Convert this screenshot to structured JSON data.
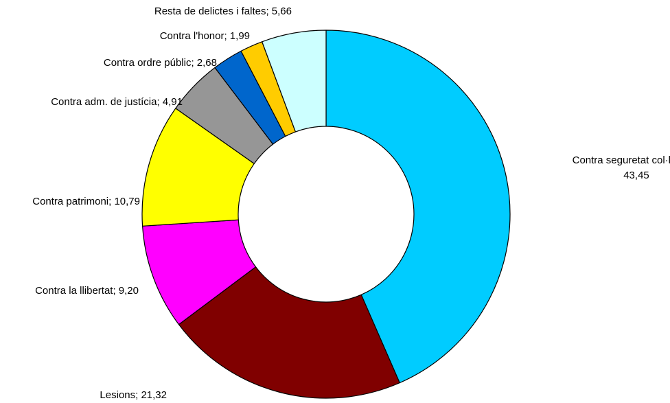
{
  "chart_data": {
    "type": "pie",
    "variant": "donut",
    "title": "",
    "slices": [
      {
        "name": "Contra seguretat col·lectiva",
        "value": 43.45,
        "label": "Contra seguretat col·lectiva;",
        "value_label": "43,45",
        "color": "#00CCFF"
      },
      {
        "name": "Lesions",
        "value": 21.32,
        "label": "Lesions; 21,32",
        "color": "#800000"
      },
      {
        "name": "Contra la llibertat",
        "value": 9.2,
        "label": "Contra la llibertat; 9,20",
        "color": "#FF00FF"
      },
      {
        "name": "Contra patrimoni",
        "value": 10.79,
        "label": "Contra patrimoni; 10,79",
        "color": "#FFFF00"
      },
      {
        "name": "Contra adm. de justícia",
        "value": 4.91,
        "label": "Contra adm. de justícia; 4,91",
        "color": "#969696"
      },
      {
        "name": "Contra ordre públic",
        "value": 2.68,
        "label": "Contra ordre públic; 2,68",
        "color": "#0066CC"
      },
      {
        "name": "Contra l'honor",
        "value": 1.99,
        "label": "Contra l'honor; 1,99",
        "color": "#FFCC00"
      },
      {
        "name": "Resta de delictes i faltes",
        "value": 5.66,
        "label": "Resta de delictes i faltes; 5,66",
        "color": "#CCFFFF"
      }
    ]
  }
}
